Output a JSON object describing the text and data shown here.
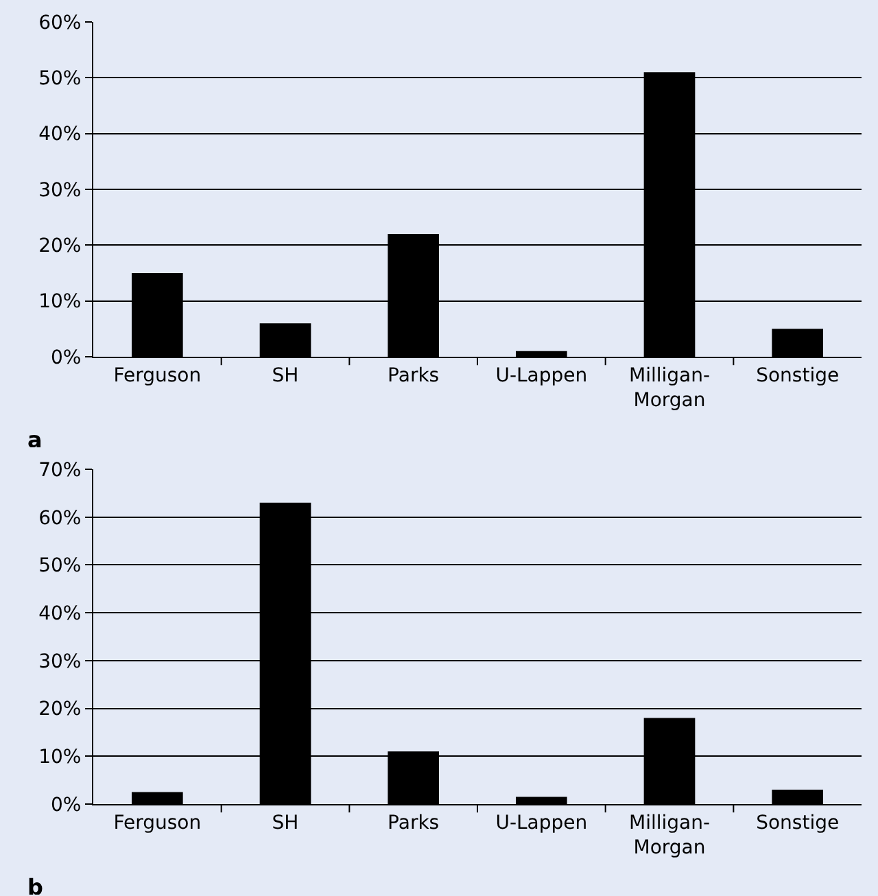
{
  "chart_data": [
    {
      "type": "bar",
      "categories": [
        "Ferguson",
        "SH",
        "Parks",
        "U-Lappen",
        "Milligan-Morgan",
        "Sonstige"
      ],
      "values": [
        15,
        6,
        22,
        1,
        51,
        5
      ],
      "color": "#000000",
      "ylim": [
        0,
        60
      ],
      "yticks": [
        {
          "value": 0,
          "label": "0%"
        },
        {
          "value": 10,
          "label": "10%"
        },
        {
          "value": 20,
          "label": "20%"
        },
        {
          "value": 30,
          "label": "30%"
        },
        {
          "value": 40,
          "label": "40%"
        },
        {
          "value": 50,
          "label": "50%"
        },
        {
          "value": 60,
          "label": "60%"
        }
      ],
      "grid": "y",
      "annotations": [
        "a"
      ]
    },
    {
      "type": "bar",
      "categories": [
        "Ferguson",
        "SH",
        "Parks",
        "U-Lappen",
        "Milligan-Morgan",
        "Sonstige"
      ],
      "values": [
        2.5,
        63,
        11,
        1.5,
        18,
        3
      ],
      "color": "#000000",
      "ylim": [
        0,
        70
      ],
      "yticks": [
        {
          "value": 0,
          "label": "0%"
        },
        {
          "value": 10,
          "label": "10%"
        },
        {
          "value": 20,
          "label": "20%"
        },
        {
          "value": 30,
          "label": "30%"
        },
        {
          "value": 40,
          "label": "40%"
        },
        {
          "value": 50,
          "label": "50%"
        },
        {
          "value": 60,
          "label": "60%"
        },
        {
          "value": 70,
          "label": "70%"
        }
      ],
      "grid": "y",
      "annotations": [
        "b"
      ]
    }
  ]
}
